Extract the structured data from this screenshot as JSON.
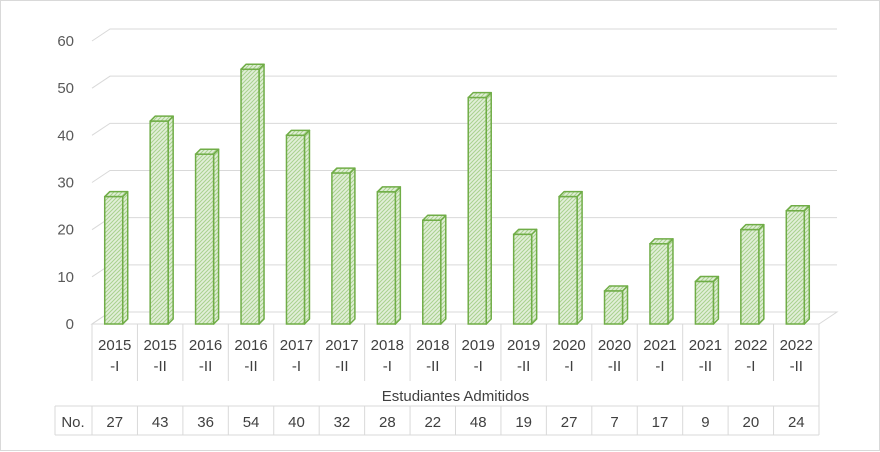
{
  "chart_data": {
    "type": "bar",
    "categories": [
      [
        "2015",
        "-I"
      ],
      [
        "2015",
        "-II"
      ],
      [
        "2016",
        "-II"
      ],
      [
        "2016",
        "-II"
      ],
      [
        "2017",
        "-I"
      ],
      [
        "2017",
        "-II"
      ],
      [
        "2018",
        "-I"
      ],
      [
        "2018",
        "-II"
      ],
      [
        "2019",
        "-I"
      ],
      [
        "2019",
        "-II"
      ],
      [
        "2020",
        "-I"
      ],
      [
        "2020",
        "-II"
      ],
      [
        "2021",
        "-I"
      ],
      [
        "2021",
        "-II"
      ],
      [
        "2022",
        "-I"
      ],
      [
        "2022",
        "-II"
      ]
    ],
    "values": [
      27,
      43,
      36,
      54,
      40,
      32,
      28,
      22,
      48,
      19,
      27,
      7,
      17,
      9,
      20,
      24
    ],
    "xlabel": "Estudiantes Admitidos",
    "ylim": [
      0,
      60
    ],
    "yticks": [
      0,
      10,
      20,
      30,
      40,
      50,
      60
    ],
    "grid": true,
    "data_table": {
      "row_label": "No."
    },
    "colors": {
      "bar_fill": "#e2efd9",
      "bar_hatch": "#a9d18e",
      "bar_edge": "#70ad47",
      "grid": "#d9d9d9",
      "frame": "#d9d9d9"
    }
  }
}
